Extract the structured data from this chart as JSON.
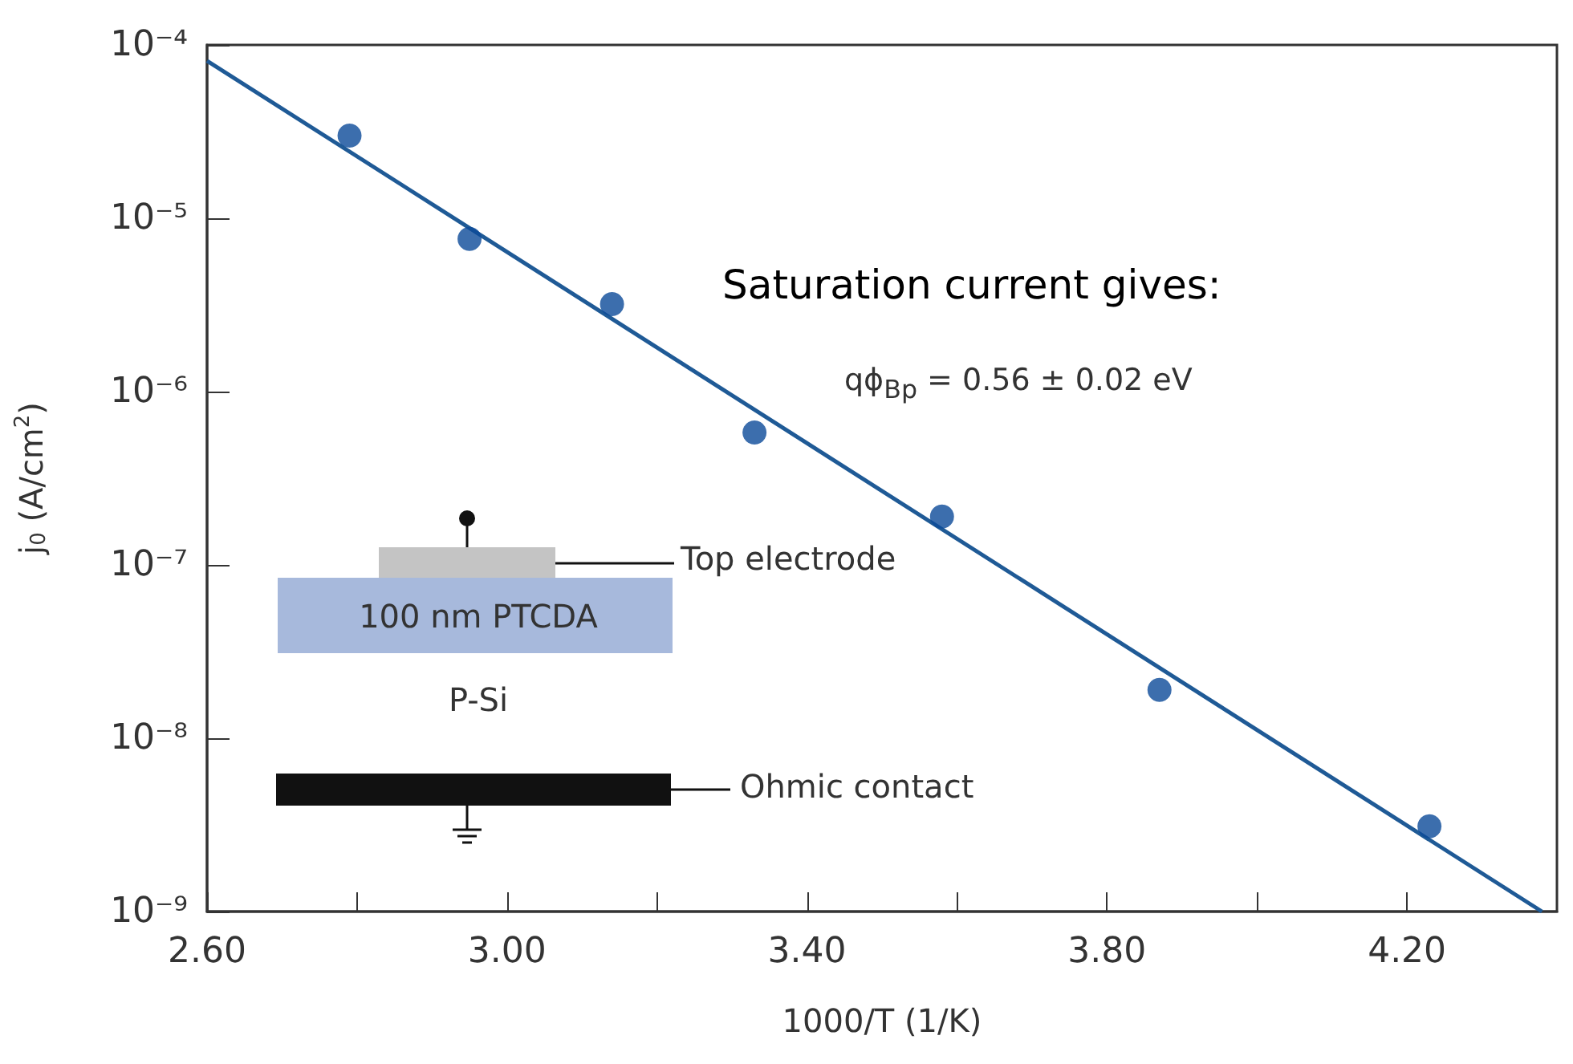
{
  "chart_data": {
    "type": "scatter",
    "xlabel": "1000/T (1/K)",
    "ylabel": "j$_{0}$ (A/cm$^{2}$)",
    "log": "y",
    "xlim": [
      2.6,
      4.4
    ],
    "ylim": [
      1e-09,
      0.0001
    ],
    "xticks": [
      {
        "value": 2.6,
        "label": "2.60"
      },
      {
        "value": 2.8,
        "label": null
      },
      {
        "value": 3.0,
        "label": "3.00"
      },
      {
        "value": 3.2,
        "label": null
      },
      {
        "value": 3.4,
        "label": "3.40"
      },
      {
        "value": 3.6,
        "label": null
      },
      {
        "value": 3.8,
        "label": "3.80"
      },
      {
        "value": 4.0,
        "label": null
      },
      {
        "value": 4.2,
        "label": "4.20"
      }
    ],
    "yticks": [
      {
        "value": 1e-09,
        "label": "10⁻⁹"
      },
      {
        "value": 1e-08,
        "label": "10⁻⁸"
      },
      {
        "value": 1e-07,
        "label": "10⁻⁷"
      },
      {
        "value": 1e-06,
        "label": "10⁻⁶"
      },
      {
        "value": 1e-05,
        "label": "10⁻⁵"
      },
      {
        "value": 0.0001,
        "label": "10⁻⁴"
      }
    ],
    "grid": false,
    "marker": "circle",
    "series": [
      {
        "color": "#0b4a98",
        "x": [
          2.79,
          2.95,
          3.14,
          3.33,
          3.58,
          3.87,
          4.23
        ],
        "values": [
          3e-05,
          7.6e-06,
          3.2e-06,
          5.8e-07,
          1.9e-07,
          1.9e-08,
          3.1e-09
        ]
      },
      {
        "type": "line",
        "color": "#1f5a96",
        "x": [
          2.6,
          4.38
        ],
        "values": [
          8.1e-05,
          1e-09
        ],
        "marker": "none",
        "line_style": "solid"
      }
    ],
    "annotations": [
      "Saturation current gives:",
      "qϕ$_{Bp}$ = 0.56 ± 0.02 eV",
      "Top electrode",
      "100 nm PTCDA",
      "P-Si",
      "Ohmic contact"
    ]
  }
}
